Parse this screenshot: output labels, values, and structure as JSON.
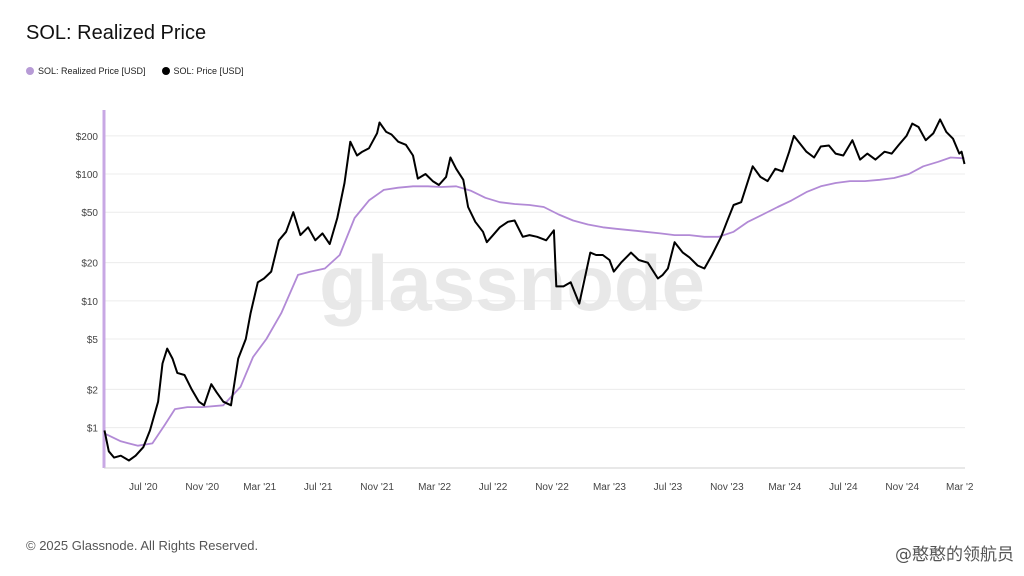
{
  "header": {
    "title": "SOL: Realized Price"
  },
  "legend": [
    {
      "label": "SOL: Realized Price [USD]",
      "color": "#b79bd6"
    },
    {
      "label": "SOL: Price [USD]",
      "color": "#000000"
    }
  ],
  "footer": {
    "copyright": "© 2025 Glassnode. All Rights Reserved."
  },
  "watermark": {
    "text": "glassnode",
    "corner_text": "@憨憨的领航员"
  },
  "colors": {
    "price": "#000000",
    "realized": "#b28ad6",
    "grid": "#ececec",
    "axis": "#b79bd6"
  },
  "chart_data": {
    "type": "line",
    "title": "SOL: Realized Price",
    "yscale": "log",
    "ylim": [
      0.48,
      320
    ],
    "y_ticks": [
      {
        "value": 1,
        "label": "$1"
      },
      {
        "value": 2,
        "label": "$2"
      },
      {
        "value": 5,
        "label": "$5"
      },
      {
        "value": 10,
        "label": "$10"
      },
      {
        "value": 20,
        "label": "$20"
      },
      {
        "value": 50,
        "label": "$50"
      },
      {
        "value": 100,
        "label": "$100"
      },
      {
        "value": 200,
        "label": "$200"
      }
    ],
    "xlim": [
      "2020-04-10",
      "2025-03-12"
    ],
    "x_ticks": [
      {
        "date": "2020-07-01",
        "label": "Jul '20"
      },
      {
        "date": "2020-11-01",
        "label": "Nov '20"
      },
      {
        "date": "2021-03-01",
        "label": "Mar '21"
      },
      {
        "date": "2021-07-01",
        "label": "Jul '21"
      },
      {
        "date": "2021-11-01",
        "label": "Nov '21"
      },
      {
        "date": "2022-03-01",
        "label": "Mar '22"
      },
      {
        "date": "2022-07-01",
        "label": "Jul '22"
      },
      {
        "date": "2022-11-01",
        "label": "Nov '22"
      },
      {
        "date": "2023-03-01",
        "label": "Mar '23"
      },
      {
        "date": "2023-07-01",
        "label": "Jul '23"
      },
      {
        "date": "2023-11-01",
        "label": "Nov '23"
      },
      {
        "date": "2024-03-01",
        "label": "Mar '24"
      },
      {
        "date": "2024-07-01",
        "label": "Jul '24"
      },
      {
        "date": "2024-11-01",
        "label": "Nov '24"
      },
      {
        "date": "2025-03-01",
        "label": "Mar '2"
      }
    ],
    "series": [
      {
        "name": "SOL: Price [USD]",
        "color": "#000000",
        "points": [
          [
            "2020-04-11",
            0.95
          ],
          [
            "2020-04-20",
            0.65
          ],
          [
            "2020-05-01",
            0.58
          ],
          [
            "2020-05-15",
            0.6
          ],
          [
            "2020-06-01",
            0.55
          ],
          [
            "2020-06-15",
            0.6
          ],
          [
            "2020-07-01",
            0.7
          ],
          [
            "2020-07-15",
            0.95
          ],
          [
            "2020-08-01",
            1.6
          ],
          [
            "2020-08-10",
            3.2
          ],
          [
            "2020-08-20",
            4.2
          ],
          [
            "2020-08-31",
            3.5
          ],
          [
            "2020-09-10",
            2.7
          ],
          [
            "2020-09-25",
            2.6
          ],
          [
            "2020-10-10",
            2.0
          ],
          [
            "2020-10-25",
            1.6
          ],
          [
            "2020-11-05",
            1.5
          ],
          [
            "2020-11-20",
            2.2
          ],
          [
            "2020-12-01",
            1.9
          ],
          [
            "2020-12-15",
            1.6
          ],
          [
            "2020-12-31",
            1.5
          ],
          [
            "2021-01-15",
            3.5
          ],
          [
            "2021-01-31",
            5.0
          ],
          [
            "2021-02-10",
            8.0
          ],
          [
            "2021-02-25",
            14
          ],
          [
            "2021-03-10",
            15
          ],
          [
            "2021-03-25",
            17
          ],
          [
            "2021-04-10",
            30
          ],
          [
            "2021-04-25",
            35
          ],
          [
            "2021-05-10",
            50
          ],
          [
            "2021-05-25",
            33
          ],
          [
            "2021-06-10",
            38
          ],
          [
            "2021-06-25",
            30
          ],
          [
            "2021-07-10",
            34
          ],
          [
            "2021-07-25",
            28
          ],
          [
            "2021-08-10",
            45
          ],
          [
            "2021-08-25",
            85
          ],
          [
            "2021-09-06",
            180
          ],
          [
            "2021-09-20",
            140
          ],
          [
            "2021-10-01",
            150
          ],
          [
            "2021-10-15",
            160
          ],
          [
            "2021-11-01",
            210
          ],
          [
            "2021-11-06",
            255
          ],
          [
            "2021-11-20",
            215
          ],
          [
            "2021-12-01",
            205
          ],
          [
            "2021-12-15",
            180
          ],
          [
            "2021-12-31",
            170
          ],
          [
            "2022-01-15",
            140
          ],
          [
            "2022-01-25",
            92
          ],
          [
            "2022-02-10",
            100
          ],
          [
            "2022-02-25",
            88
          ],
          [
            "2022-03-10",
            82
          ],
          [
            "2022-03-25",
            95
          ],
          [
            "2022-04-03",
            135
          ],
          [
            "2022-04-15",
            110
          ],
          [
            "2022-04-30",
            90
          ],
          [
            "2022-05-10",
            55
          ],
          [
            "2022-05-25",
            42
          ],
          [
            "2022-06-10",
            35
          ],
          [
            "2022-06-18",
            29
          ],
          [
            "2022-07-01",
            33
          ],
          [
            "2022-07-15",
            38
          ],
          [
            "2022-08-01",
            42
          ],
          [
            "2022-08-15",
            43
          ],
          [
            "2022-09-01",
            32
          ],
          [
            "2022-09-15",
            33
          ],
          [
            "2022-10-01",
            32
          ],
          [
            "2022-10-20",
            30
          ],
          [
            "2022-11-05",
            36
          ],
          [
            "2022-11-10",
            13
          ],
          [
            "2022-11-25",
            13
          ],
          [
            "2022-12-10",
            14
          ],
          [
            "2022-12-28",
            9.5
          ],
          [
            "2023-01-10",
            16
          ],
          [
            "2023-01-20",
            24
          ],
          [
            "2023-02-01",
            23
          ],
          [
            "2023-02-15",
            23
          ],
          [
            "2023-03-01",
            21
          ],
          [
            "2023-03-10",
            17
          ],
          [
            "2023-03-25",
            20
          ],
          [
            "2023-04-15",
            24
          ],
          [
            "2023-05-01",
            21
          ],
          [
            "2023-05-20",
            20
          ],
          [
            "2023-06-10",
            15
          ],
          [
            "2023-06-20",
            16
          ],
          [
            "2023-07-01",
            18
          ],
          [
            "2023-07-15",
            29
          ],
          [
            "2023-08-01",
            24
          ],
          [
            "2023-08-15",
            22
          ],
          [
            "2023-09-01",
            19
          ],
          [
            "2023-09-15",
            18
          ],
          [
            "2023-10-01",
            23
          ],
          [
            "2023-10-20",
            32
          ],
          [
            "2023-11-01",
            42
          ],
          [
            "2023-11-15",
            57
          ],
          [
            "2023-12-01",
            60
          ],
          [
            "2023-12-25",
            115
          ],
          [
            "2024-01-10",
            95
          ],
          [
            "2024-01-25",
            88
          ],
          [
            "2024-02-10",
            110
          ],
          [
            "2024-02-25",
            105
          ],
          [
            "2024-03-10",
            150
          ],
          [
            "2024-03-20",
            200
          ],
          [
            "2024-04-01",
            175
          ],
          [
            "2024-04-15",
            150
          ],
          [
            "2024-05-01",
            135
          ],
          [
            "2024-05-15",
            165
          ],
          [
            "2024-06-01",
            168
          ],
          [
            "2024-06-15",
            145
          ],
          [
            "2024-07-01",
            140
          ],
          [
            "2024-07-20",
            185
          ],
          [
            "2024-08-05",
            130
          ],
          [
            "2024-08-20",
            145
          ],
          [
            "2024-09-06",
            130
          ],
          [
            "2024-09-25",
            150
          ],
          [
            "2024-10-10",
            145
          ],
          [
            "2024-10-25",
            170
          ],
          [
            "2024-11-10",
            200
          ],
          [
            "2024-11-22",
            250
          ],
          [
            "2024-12-05",
            235
          ],
          [
            "2024-12-20",
            185
          ],
          [
            "2025-01-05",
            210
          ],
          [
            "2025-01-19",
            270
          ],
          [
            "2025-02-01",
            215
          ],
          [
            "2025-02-15",
            190
          ],
          [
            "2025-02-28",
            145
          ],
          [
            "2025-03-05",
            150
          ],
          [
            "2025-03-11",
            120
          ]
        ]
      },
      {
        "name": "SOL: Realized Price [USD]",
        "color": "#b28ad6",
        "points": [
          [
            "2020-04-11",
            0.9
          ],
          [
            "2020-05-15",
            0.78
          ],
          [
            "2020-06-20",
            0.72
          ],
          [
            "2020-07-20",
            0.75
          ],
          [
            "2020-08-15",
            1.05
          ],
          [
            "2020-09-05",
            1.4
          ],
          [
            "2020-10-01",
            1.45
          ],
          [
            "2020-11-01",
            1.45
          ],
          [
            "2020-12-15",
            1.5
          ],
          [
            "2021-01-20",
            2.1
          ],
          [
            "2021-02-15",
            3.6
          ],
          [
            "2021-03-15",
            5.0
          ],
          [
            "2021-04-15",
            8.0
          ],
          [
            "2021-05-20",
            16
          ],
          [
            "2021-06-15",
            17
          ],
          [
            "2021-07-15",
            18
          ],
          [
            "2021-08-15",
            23
          ],
          [
            "2021-09-15",
            45
          ],
          [
            "2021-10-15",
            62
          ],
          [
            "2021-11-15",
            75
          ],
          [
            "2021-12-15",
            78
          ],
          [
            "2022-01-15",
            80
          ],
          [
            "2022-02-15",
            80
          ],
          [
            "2022-03-15",
            79
          ],
          [
            "2022-04-15",
            80
          ],
          [
            "2022-05-15",
            74
          ],
          [
            "2022-06-15",
            65
          ],
          [
            "2022-07-15",
            60
          ],
          [
            "2022-08-15",
            58
          ],
          [
            "2022-09-15",
            57
          ],
          [
            "2022-10-15",
            55
          ],
          [
            "2022-11-15",
            48
          ],
          [
            "2022-12-15",
            43
          ],
          [
            "2023-01-15",
            40
          ],
          [
            "2023-02-15",
            38
          ],
          [
            "2023-03-15",
            37
          ],
          [
            "2023-04-15",
            36
          ],
          [
            "2023-05-15",
            35
          ],
          [
            "2023-06-15",
            34
          ],
          [
            "2023-07-15",
            33
          ],
          [
            "2023-08-15",
            33
          ],
          [
            "2023-09-15",
            32
          ],
          [
            "2023-10-15",
            32
          ],
          [
            "2023-11-15",
            35
          ],
          [
            "2023-12-15",
            42
          ],
          [
            "2024-01-15",
            48
          ],
          [
            "2024-02-15",
            55
          ],
          [
            "2024-03-15",
            62
          ],
          [
            "2024-04-15",
            72
          ],
          [
            "2024-05-15",
            80
          ],
          [
            "2024-06-15",
            85
          ],
          [
            "2024-07-15",
            88
          ],
          [
            "2024-08-15",
            88
          ],
          [
            "2024-09-15",
            90
          ],
          [
            "2024-10-15",
            93
          ],
          [
            "2024-11-15",
            100
          ],
          [
            "2024-12-15",
            115
          ],
          [
            "2025-01-15",
            125
          ],
          [
            "2025-02-10",
            135
          ],
          [
            "2025-03-11",
            133
          ]
        ]
      }
    ]
  }
}
